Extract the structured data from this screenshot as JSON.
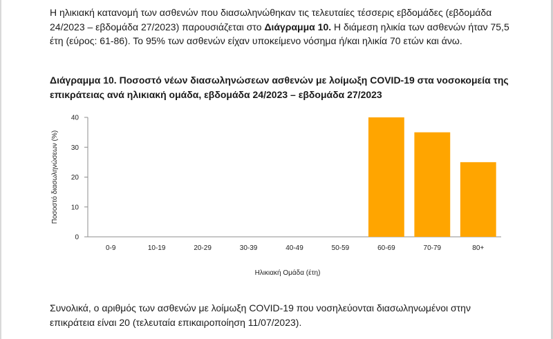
{
  "intro": {
    "before": "Η ηλικιακή κατανομή των ασθενών που διασωληνώθηκαν τις τελευταίες τέσσερις εβδομάδες (εβδομάδα 24/2023 – εβδομάδα 27/2023) παρουσιάζεται στο ",
    "bold": "Διάγραμμα 10.",
    "after": " Η διάμεση ηλικία των ασθενών ήταν 75,5 έτη (εύρος: 61-86). Το 95% των ασθενών είχαν υποκείμενο νόσημα ή/και ηλικία 70 ετών και άνω."
  },
  "caption": "Διάγραμμα 10. Ποσοστό νέων διασωληνώσεων ασθενών με λοίμωξη COVID-19 στα νοσοκομεία της επικράτειας ανά ηλικιακή ομάδα, εβδομάδα 24/2023 – εβδομάδα 27/2023",
  "outro": "Συνολικά, ο αριθμός των ασθενών με λοίμωξη COVID-19 που νοσηλεύονται διασωληνωμένοι στην επικράτεια είναι 20 (τελευταία επικαιροποίηση 11/07/2023).",
  "chart_data": {
    "type": "bar",
    "categories": [
      "0-9",
      "10-19",
      "20-29",
      "30-39",
      "40-49",
      "50-59",
      "60-69",
      "70-79",
      "80+"
    ],
    "values": [
      0,
      0,
      0,
      0,
      0,
      0,
      40,
      35,
      25
    ],
    "xlabel": "Ηλικιακή Ομάδα (έτη)",
    "ylabel": "Ποσοστό διασωληνώσεων (%)",
    "ylim": [
      0,
      40
    ],
    "yticks": [
      0,
      10,
      20,
      30,
      40
    ],
    "grid": false,
    "bar_color": "#FFA500"
  }
}
